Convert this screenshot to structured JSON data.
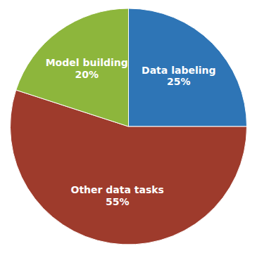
{
  "chart_data": {
    "type": "pie",
    "categories": [
      "Data labeling",
      "Other data tasks",
      "Model building"
    ],
    "values": [
      25,
      55,
      20
    ],
    "value_labels": [
      "25%",
      "55%",
      "20%"
    ],
    "colors": [
      "#2E75B6",
      "#9E3B2C",
      "#8DB63C"
    ],
    "data_labels": true
  }
}
